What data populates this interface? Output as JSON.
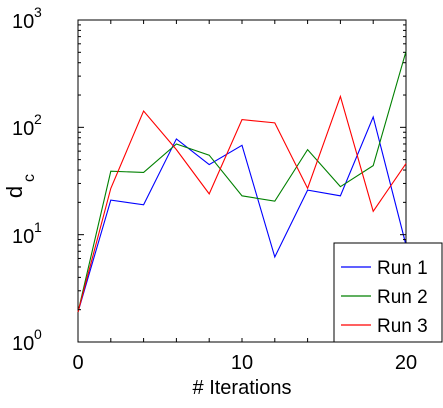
{
  "chart_data": {
    "type": "line",
    "title": "",
    "xlabel": "# Iterations",
    "ylabel": {
      "main": "d",
      "sub": "c"
    },
    "yscale": "log",
    "xlim": [
      0,
      20
    ],
    "ylim": [
      1,
      1000
    ],
    "grid": false,
    "legend_position": "bottom-right",
    "x_ticks": [
      {
        "value": 0,
        "label": "0"
      },
      {
        "value": 10,
        "label": "10"
      },
      {
        "value": 20,
        "label": "20"
      }
    ],
    "y_ticks": [
      {
        "value": 1,
        "base": "10",
        "exp": "0"
      },
      {
        "value": 10,
        "base": "10",
        "exp": "1"
      },
      {
        "value": 100,
        "base": "10",
        "exp": "2"
      },
      {
        "value": 1000,
        "base": "10",
        "exp": "3"
      }
    ],
    "x": [
      0,
      2,
      4,
      6,
      8,
      10,
      12,
      14,
      16,
      18,
      20
    ],
    "series": [
      {
        "name": "Run 1",
        "color": "#0000ff",
        "values": [
          1.9,
          21,
          19,
          78,
          45,
          68,
          6.2,
          26,
          23,
          125,
          8
        ]
      },
      {
        "name": "Run 2",
        "color": "#008000",
        "values": [
          1.9,
          39,
          38,
          70,
          55,
          23,
          20.5,
          62,
          28,
          44,
          510
        ]
      },
      {
        "name": "Run 3",
        "color": "#ff0000",
        "values": [
          1.9,
          27,
          142,
          62,
          24,
          118,
          110,
          27,
          194,
          16.5,
          46
        ]
      }
    ]
  }
}
